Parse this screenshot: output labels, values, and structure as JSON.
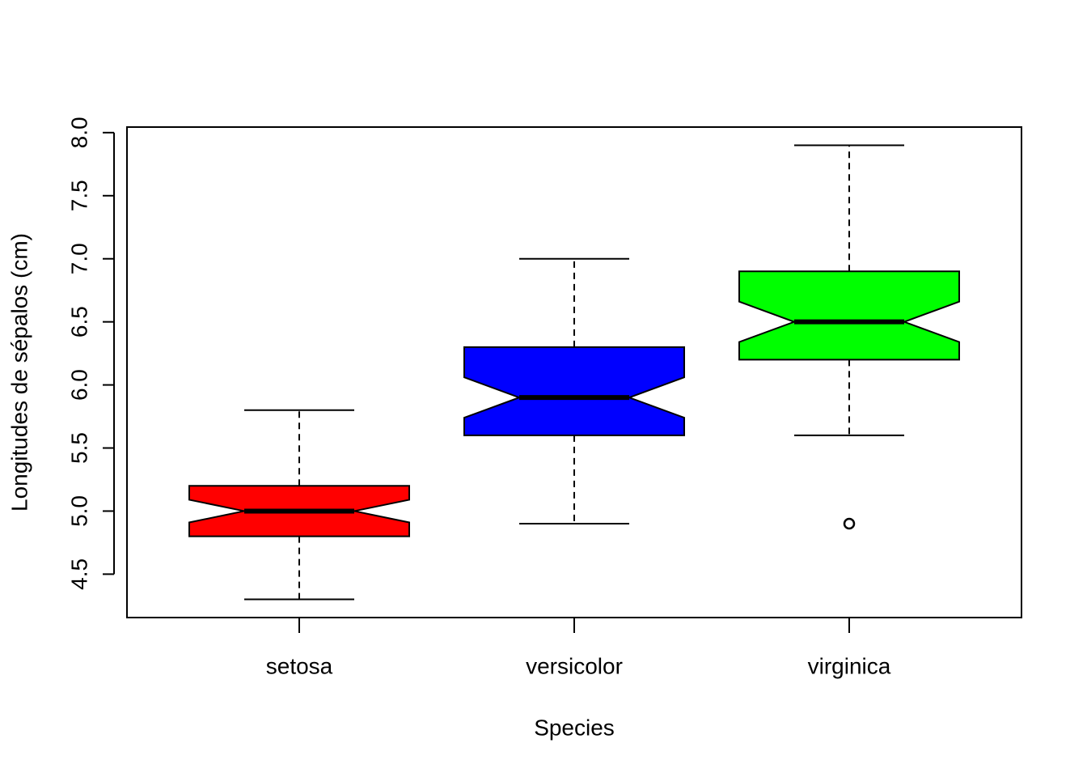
{
  "chart_data": {
    "type": "boxplot",
    "xlabel": "Species",
    "ylabel": "Longitudes de sépalos (cm)",
    "categories": [
      "setosa",
      "versicolor",
      "virginica"
    ],
    "colors": [
      "#ff0000",
      "#0000ff",
      "#00ff00"
    ],
    "whisker_low": [
      4.3,
      4.9,
      5.6
    ],
    "q1": [
      4.8,
      5.6,
      6.2
    ],
    "median": [
      5.0,
      5.9,
      6.5
    ],
    "q3": [
      5.2,
      6.3,
      6.9
    ],
    "whisker_high": [
      5.8,
      7.0,
      7.9
    ],
    "notch_low": [
      4.91,
      5.74,
      6.34
    ],
    "notch_high": [
      5.09,
      6.06,
      6.66
    ],
    "outliers": [
      [],
      [],
      [
        4.9
      ]
    ],
    "ylim": [
      4.156,
      8.044
    ],
    "yticks": [
      4.5,
      {
        "value": 5,
        "label": "5.0"
      },
      5.5,
      {
        "value": 6,
        "label": "6.0"
      },
      6.5,
      {
        "value": 7,
        "label": "7.0"
      },
      7.5,
      {
        "value": 8,
        "label": "8.0"
      }
    ]
  }
}
